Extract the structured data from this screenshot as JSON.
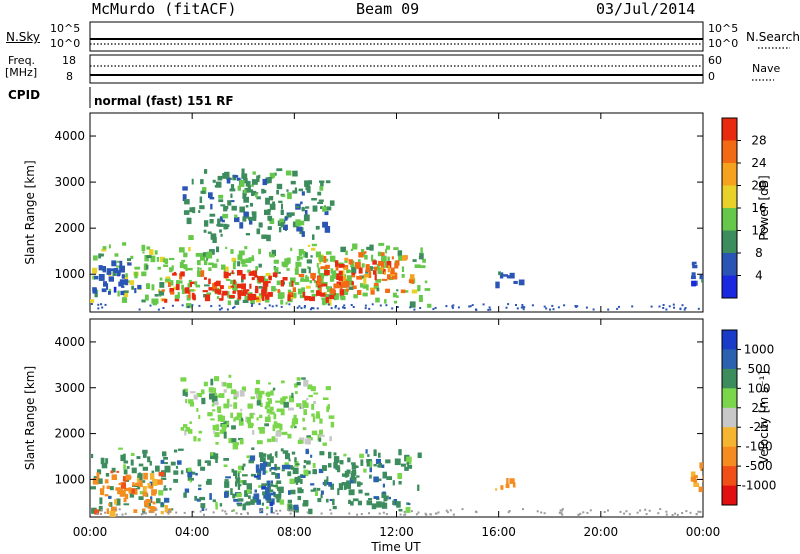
{
  "header": {
    "station": "McMurdo (fitACF)",
    "beam": "Beam 09",
    "date": "03/Jul/2014"
  },
  "strip_labels": {
    "nsky": "N.Sky",
    "nsearch": "N.Search",
    "nsky_top": "10^5",
    "nsky_bottom": "10^0",
    "freq_line1": "Freq.",
    "freq_line2": "[MHz]",
    "freq_top": "18",
    "freq_bottom": "8",
    "nave": "Nave",
    "nave_top": "60",
    "nave_bottom": "0",
    "cpid": "CPID",
    "cpid_value": "normal (fast) 151 RF"
  },
  "colors": {
    "power": [
      "#1a28e0",
      "#2b55b5",
      "#3c8c5e",
      "#66c84a",
      "#e8d22a",
      "#f5a31e",
      "#f26b14",
      "#e82a10"
    ],
    "velocity": [
      "#e01010",
      "#f05018",
      "#f58c20",
      "#f5b530",
      "#c8c8c8",
      "#7ad64a",
      "#3c8c5e",
      "#2a62b0",
      "#1a3ac8"
    ]
  },
  "chart_data": [
    {
      "type": "heatmap",
      "title": "Power",
      "ylabel": "Slant Range [km]",
      "xlabel": "Time UT",
      "x_ticks": [
        "00:00",
        "04:00",
        "08:00",
        "12:00",
        "16:00",
        "20:00",
        "00:00"
      ],
      "y_ticks": [
        1000,
        2000,
        3000,
        4000
      ],
      "colorbar": {
        "label": "Power [dB]",
        "ticks": [
          4,
          8,
          12,
          16,
          20,
          24,
          28
        ]
      },
      "regions": [
        {
          "t0": 0.0,
          "t1": 13.2,
          "r0": 350,
          "r1": 1700,
          "level": 3
        },
        {
          "t0": 2.8,
          "t1": 10.0,
          "r0": 450,
          "r1": 1100,
          "level": 7
        },
        {
          "t0": 8.8,
          "t1": 12.6,
          "r0": 600,
          "r1": 1500,
          "level": 6
        },
        {
          "t0": 0.0,
          "t1": 2.0,
          "r0": 600,
          "r1": 1500,
          "level": 1
        },
        {
          "t0": 3.5,
          "t1": 9.5,
          "r0": 1800,
          "r1": 3300,
          "level": 2
        },
        {
          "t0": 15.8,
          "t1": 16.8,
          "r0": 800,
          "r1": 1100,
          "level": 1
        },
        {
          "t0": 23.4,
          "t1": 24.0,
          "r0": 800,
          "r1": 1400,
          "level": 1
        }
      ]
    },
    {
      "type": "heatmap",
      "title": "Velocity",
      "ylabel": "Slant Range [km]",
      "xlabel": "Time UT",
      "x_ticks": [
        "00:00",
        "04:00",
        "08:00",
        "12:00",
        "16:00",
        "20:00",
        "00:00"
      ],
      "y_ticks": [
        1000,
        2000,
        3000,
        4000
      ],
      "colorbar": {
        "label": "Velocity [m s^-1]",
        "ticks": [
          "1000",
          "500",
          "100",
          "25",
          "-25",
          "-100",
          "-500",
          "-1000"
        ]
      },
      "regions": [
        {
          "t0": 0.0,
          "t1": 13.0,
          "r0": 350,
          "r1": 1700,
          "level": 6
        },
        {
          "t0": 0.0,
          "t1": 3.0,
          "r0": 300,
          "r1": 1200,
          "level": 2
        },
        {
          "t0": 6.2,
          "t1": 7.2,
          "r0": 350,
          "r1": 1400,
          "level": 7
        },
        {
          "t0": 3.5,
          "t1": 9.5,
          "r0": 1800,
          "r1": 3300,
          "level": 5
        },
        {
          "t0": 15.8,
          "t1": 16.8,
          "r0": 800,
          "r1": 1100,
          "level": 2
        },
        {
          "t0": 23.4,
          "t1": 24.0,
          "r0": 800,
          "r1": 1400,
          "level": 2
        }
      ]
    }
  ]
}
